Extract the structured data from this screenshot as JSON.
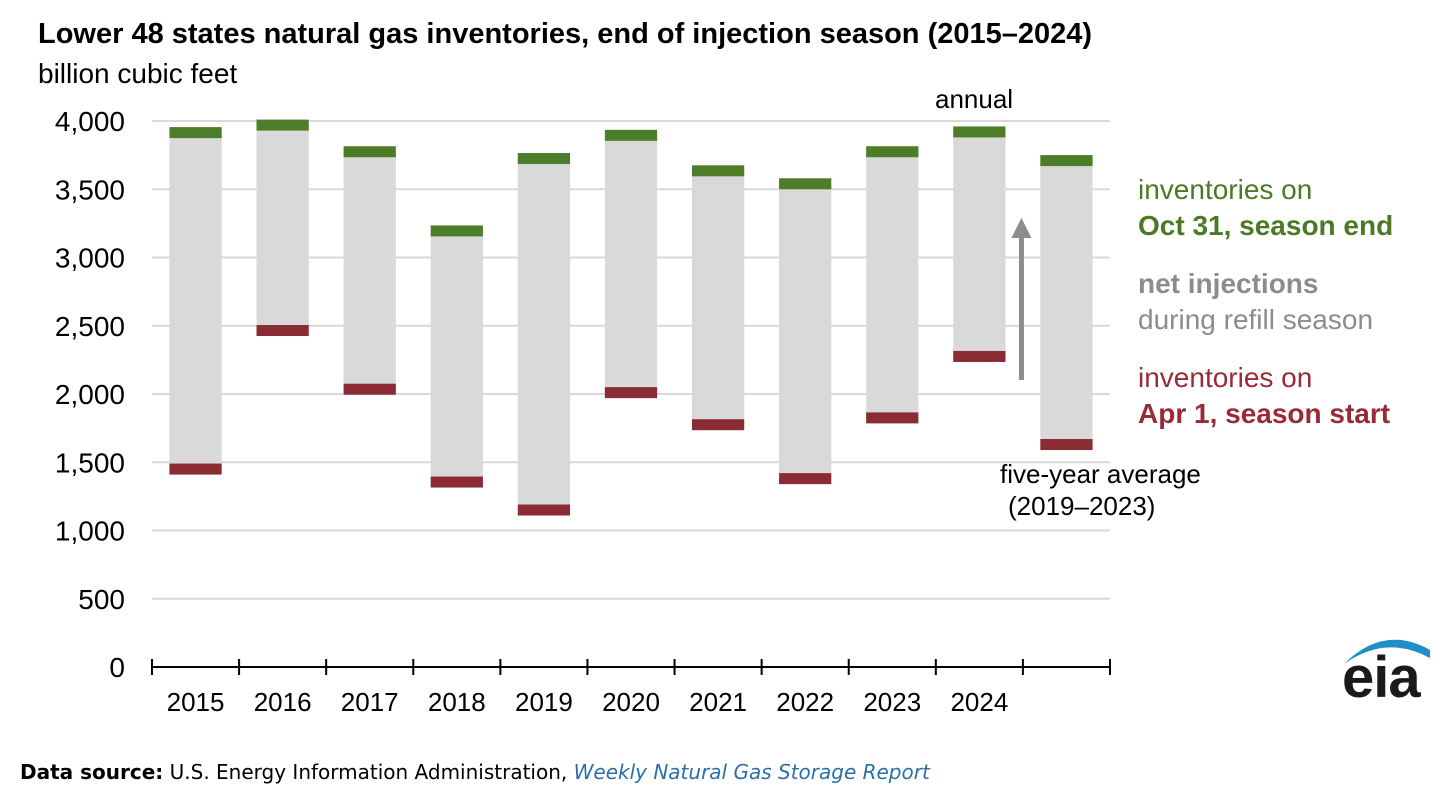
{
  "title": "Lower 48 states natural gas inventories, end of injection season (2015–2024)",
  "subtitle": "billion cubic feet",
  "chart_data": {
    "type": "bar",
    "title": "Lower 48 states natural gas inventories, end of injection season (2015–2024)",
    "ylabel": "billion cubic feet",
    "xlabel": "",
    "ylim": [
      0,
      4000
    ],
    "yticks": [
      0,
      500,
      1000,
      1500,
      2000,
      2500,
      3000,
      3500,
      4000
    ],
    "ytick_labels": [
      "0",
      "500",
      "1,000",
      "1,500",
      "2,000",
      "2,500",
      "3,000",
      "3,500",
      "4,000"
    ],
    "grid": true,
    "categories": [
      "2015",
      "2016",
      "2017",
      "2018",
      "2019",
      "2020",
      "2021",
      "2022",
      "2023",
      "2024",
      "five-year average (2019–2023)"
    ],
    "category_labels": [
      "2015",
      "2016",
      "2017",
      "2018",
      "2019",
      "2020",
      "2021",
      "2022",
      "2023",
      "2024",
      ""
    ],
    "series": [
      {
        "name": "inventories on Apr 1, season start",
        "values": [
          1450,
          2465,
          2035,
          1355,
          1150,
          2010,
          1775,
          1380,
          1825,
          2275,
          1630
        ]
      },
      {
        "name": "inventories on Oct 31, season end",
        "values": [
          3915,
          3970,
          3775,
          3195,
          3725,
          3895,
          3635,
          3540,
          3775,
          3920,
          3710
        ]
      }
    ],
    "annotations": [
      "annual",
      "five-year average",
      "(2019–2023)"
    ],
    "colors": {
      "start": "#8b2c35",
      "end": "#4e7d2a",
      "injection": "#d9d9d9",
      "arrow": "#8c8c8c",
      "grid": "#d9d9d9"
    }
  },
  "legend": {
    "end_line1": "inventories on",
    "end_line2": "Oct 31, season end",
    "inj_line1": "net injections",
    "inj_line2": "during refill season",
    "start_line1": "inventories on",
    "start_line2": "Apr 1, season start"
  },
  "annotations": {
    "annual": "annual",
    "avg_line1": "five-year average",
    "avg_line2": "(2019–2023)"
  },
  "footer": {
    "label": "Data source:",
    "text": " U.S. Energy Information Administration, ",
    "link": "Weekly Natural Gas Storage Report"
  },
  "logo": {
    "text": "eia",
    "icon": "eia-logo-icon"
  }
}
